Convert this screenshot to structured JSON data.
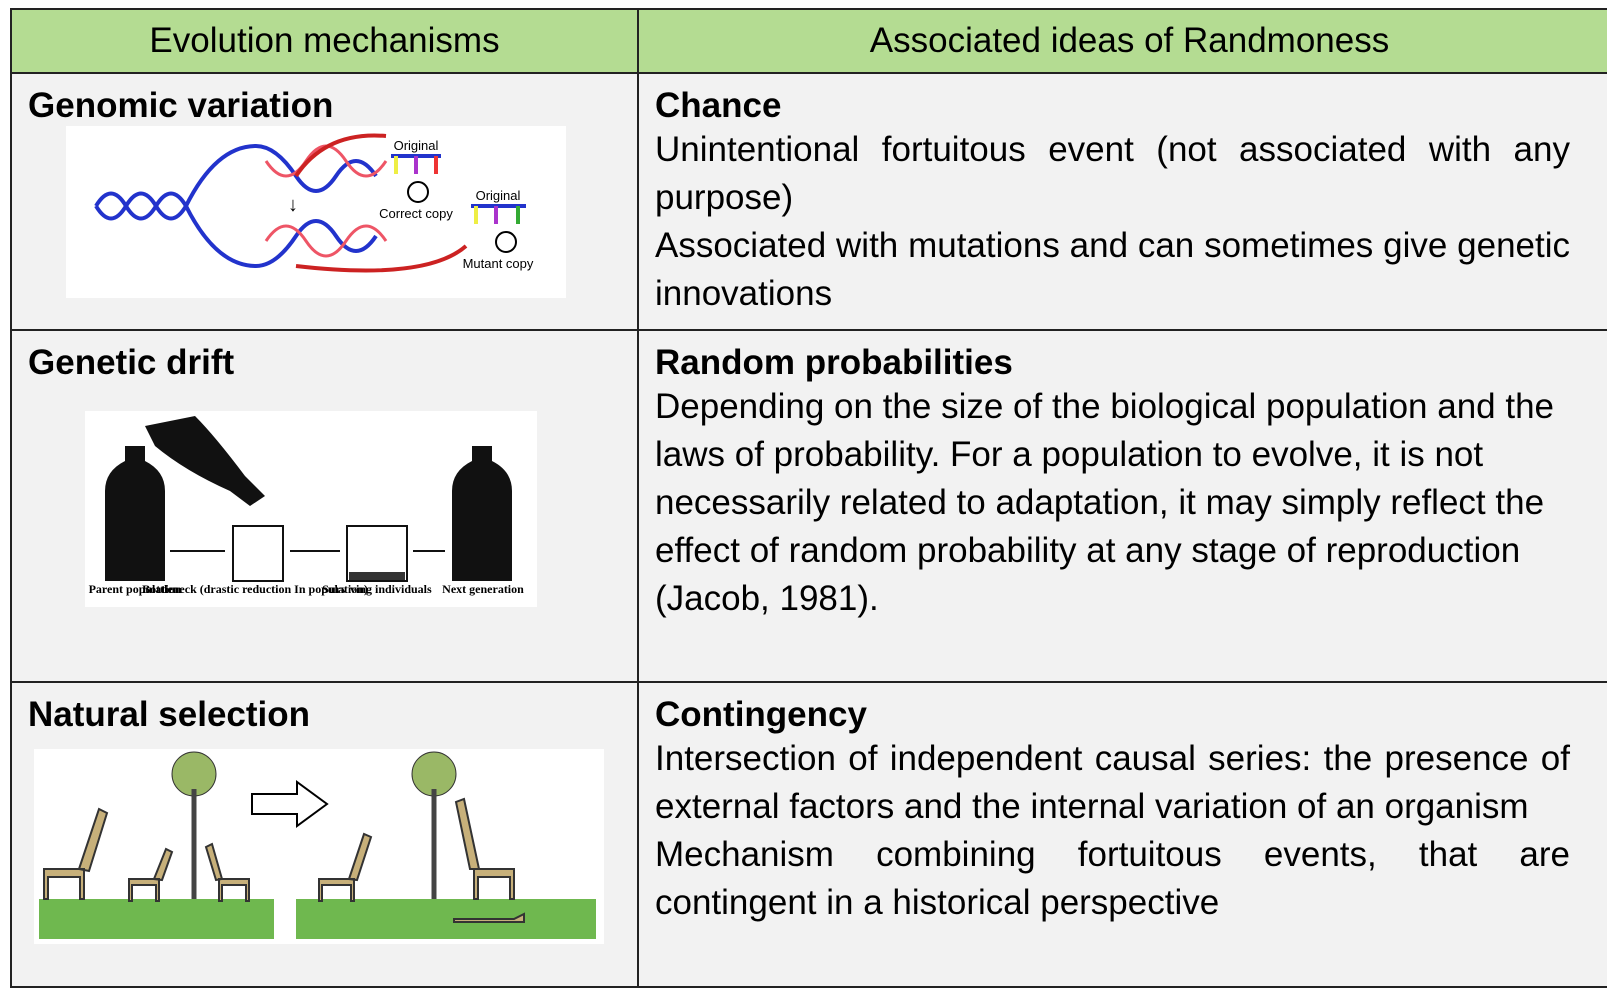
{
  "header": {
    "col1": "Evolution mechanisms",
    "col2": "Associated ideas of Randmoness"
  },
  "rows": [
    {
      "mechanism": "Genomic variation",
      "idea": "Chance",
      "paragraphs": [
        "Unintentional fortuitous event (not associated with any purpose)",
        "Associated with mutations and can sometimes give genetic innovations"
      ],
      "figure_labels": [
        "Original",
        "Correct copy",
        "Original",
        "Mutant copy"
      ]
    },
    {
      "mechanism": "Genetic drift",
      "idea": "Random probabilities",
      "paragraphs": [
        "Depending on the size of the biological population and the laws of probability. For a population to evolve, it is not necessarily related to adaptation, it may simply reflect the effect of random probability at any stage of reproduction (Jacob, 1981)."
      ],
      "figure_labels": [
        "Parent population",
        "Bottleneck (drastic reduction In population)",
        "Surv ving individuals",
        "Next generation"
      ]
    },
    {
      "mechanism": "Natural selection",
      "idea": "Contingency",
      "paragraphs": [
        "Intersection of independent causal series: the presence of external factors and the internal variation of an organism",
        "Mechanism combining fortuitous events, that are contingent in a historical perspective"
      ]
    }
  ]
}
